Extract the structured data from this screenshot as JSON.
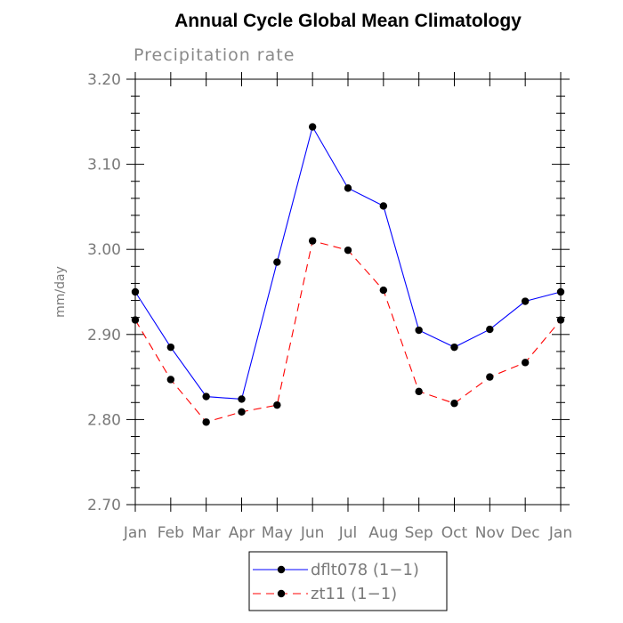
{
  "chart_data": {
    "type": "line",
    "title": "Annual Cycle Global Mean Climatology",
    "subtitle": "Precipitation rate",
    "ylabel": "mm/day",
    "xlabel": "",
    "categories": [
      "Jan",
      "Feb",
      "Mar",
      "Apr",
      "May",
      "Jun",
      "Jul",
      "Aug",
      "Sep",
      "Oct",
      "Nov",
      "Dec",
      "Jan"
    ],
    "ylim": [
      2.7,
      3.2
    ],
    "yticks": [
      "2.70",
      "2.80",
      "2.90",
      "3.00",
      "3.10",
      "3.20"
    ],
    "grid": false,
    "legend_position": "bottom",
    "series": [
      {
        "name": "dflt078 (1−1)",
        "color": "#0000ff",
        "dash": "solid",
        "marker": "filled-circle",
        "values": [
          2.95,
          2.885,
          2.827,
          2.824,
          2.985,
          3.144,
          3.072,
          3.051,
          2.905,
          2.885,
          2.906,
          2.939,
          2.95
        ]
      },
      {
        "name": "zt11 (1−1)",
        "color": "#ff0000",
        "dash": "dashed",
        "marker": "filled-circle",
        "values": [
          2.917,
          2.847,
          2.797,
          2.809,
          2.817,
          3.01,
          2.999,
          2.952,
          2.833,
          2.819,
          2.85,
          2.867,
          2.917
        ]
      }
    ]
  }
}
